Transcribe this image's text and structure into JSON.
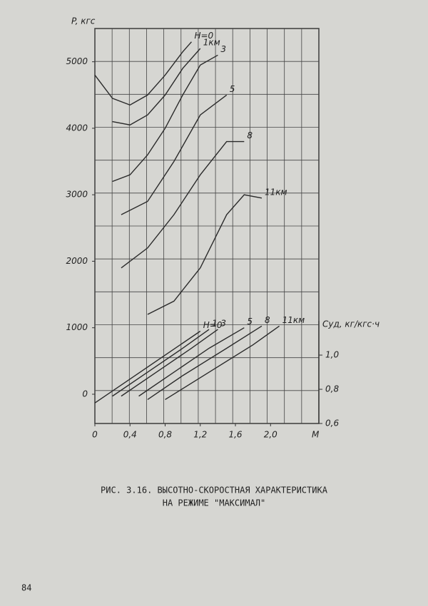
{
  "chart_data": {
    "type": "line",
    "y_label": "P, кгс",
    "x_label": "M",
    "y2_label": "Cуд, кг/кгс·ч",
    "xlim": [
      0,
      2.55
    ],
    "ylim": [
      -440,
      5500
    ],
    "y2lim": [
      0.6,
      2.91
    ],
    "xticks": [
      0,
      {
        "value": 0.4,
        "label": "0,4"
      },
      {
        "value": 0.8,
        "label": "0,8"
      },
      {
        "value": 1.2,
        "label": "1,2"
      },
      {
        "value": 1.6,
        "label": "1,6"
      },
      {
        "value": 2.0,
        "label": "2,0"
      }
    ],
    "yticks": [
      0,
      1000,
      2000,
      3000,
      4000,
      5000
    ],
    "y2ticks": [
      {
        "value": 0.6,
        "label": "0,6"
      },
      {
        "value": 0.8,
        "label": "0,8"
      },
      {
        "value": 1.0,
        "label": "1,0"
      }
    ],
    "grid": true,
    "color": "#2a2a2a",
    "series": [
      {
        "name": "H=0",
        "x": [
          0,
          0.2,
          0.4,
          0.6,
          0.8,
          1.0,
          1.1
        ],
        "values": [
          4800,
          4450,
          4350,
          4500,
          4800,
          5150,
          5300
        ]
      },
      {
        "name": "1км",
        "x": [
          0.2,
          0.4,
          0.6,
          0.8,
          1.0,
          1.2
        ],
        "values": [
          4100,
          4050,
          4200,
          4500,
          4900,
          5200
        ]
      },
      {
        "name": "3",
        "x": [
          0.2,
          0.4,
          0.6,
          0.8,
          1.0,
          1.2,
          1.4
        ],
        "values": [
          3200,
          3300,
          3600,
          4000,
          4500,
          4950,
          5100
        ]
      },
      {
        "name": "5",
        "x": [
          0.3,
          0.6,
          0.9,
          1.2,
          1.5
        ],
        "values": [
          2700,
          2900,
          3500,
          4200,
          4500
        ]
      },
      {
        "name": "8",
        "x": [
          0.3,
          0.6,
          0.9,
          1.2,
          1.5,
          1.7
        ],
        "values": [
          1900,
          2200,
          2700,
          3300,
          3800,
          3800
        ]
      },
      {
        "name": "11км",
        "x": [
          0.6,
          0.9,
          1.2,
          1.5,
          1.7,
          1.9
        ],
        "values": [
          1200,
          1400,
          1900,
          2700,
          3000,
          2950
        ]
      },
      {
        "name": "H=0",
        "axis": "y2",
        "x": [
          0,
          0.4,
          0.8,
          1.2
        ],
        "values": [
          0.72,
          0.86,
          1.0,
          1.14
        ]
      },
      {
        "name": "1",
        "axis": "y2",
        "x": [
          0.2,
          0.6,
          1.0,
          1.3
        ],
        "values": [
          0.76,
          0.9,
          1.04,
          1.15
        ]
      },
      {
        "name": "3",
        "axis": "y2",
        "x": [
          0.3,
          0.7,
          1.1,
          1.4
        ],
        "values": [
          0.76,
          0.9,
          1.04,
          1.15
        ]
      },
      {
        "name": "5",
        "axis": "y2",
        "x": [
          0.5,
          0.9,
          1.3,
          1.7
        ],
        "values": [
          0.76,
          0.9,
          1.04,
          1.16
        ]
      },
      {
        "name": "8",
        "axis": "y2",
        "x": [
          0.6,
          1.0,
          1.5,
          1.9
        ],
        "values": [
          0.74,
          0.88,
          1.04,
          1.17
        ]
      },
      {
        "name": "11км",
        "axis": "y2",
        "x": [
          0.8,
          1.3,
          1.8,
          2.1
        ],
        "values": [
          0.74,
          0.9,
          1.06,
          1.17
        ]
      }
    ]
  },
  "caption": [
    "РИС. 3.16. ВЫСОТНО-СКОРОСТНАЯ ХАРАКТЕРИСТИКА",
    "НА РЕЖИМЕ \"МАКСИМАЛ\""
  ],
  "page_number": "84"
}
